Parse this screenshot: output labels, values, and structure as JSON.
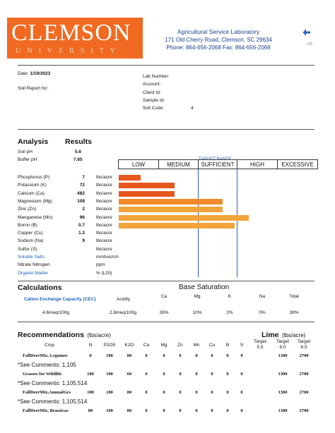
{
  "logo": {
    "line1": "CLEMSON",
    "line2": "UNIVERSITY"
  },
  "lab": {
    "name": "Agricultural Service Laboratory",
    "address": "171 Old Cherry Road, Clemson, SC 29634",
    "phone": "Phone: 864-656-2068 Fax: 864-656-2069"
  },
  "nav": {
    "back_icon": "arrow-left-icon",
    "forward_icon": "arrow-right-icon"
  },
  "report": {
    "date_label": "Date:",
    "date": "1/19/2023",
    "soil_report_for": "Soil Report for:",
    "lab_number": "Lab Number:",
    "account": "Account:",
    "client_id": "Client Id:",
    "sample_id": "Sample Id:",
    "soil_code_label": "Soil Code:",
    "soil_code": "4"
  },
  "analysis": {
    "title": "Analysis",
    "results_title": "Results",
    "soil_ph_label": "Soil pH",
    "soil_ph": "5.6",
    "buffer_ph_label": "Buffer pH",
    "buffer_ph": "7.65",
    "scale": [
      "LOW",
      "MEDIUM",
      "SUFFICIENT",
      "HIGH",
      "EXCESSIVE"
    ],
    "target_range": "TARGET RANGE",
    "nutrients": [
      {
        "name": "Phosphorus (P)",
        "value": "7",
        "unit": "lbs/acre",
        "level": 0.11,
        "color": "#e8561e"
      },
      {
        "name": "Potassium (K)",
        "value": "72",
        "unit": "lbs/acre",
        "level": 0.28,
        "color": "#e8561e"
      },
      {
        "name": "Calcium (Ca)",
        "value": "482",
        "unit": "lbs/acre",
        "level": 0.28,
        "color": "#e8561e"
      },
      {
        "name": "Magnesium (Mg)",
        "value": "108",
        "unit": "lbs/acre",
        "level": 0.52,
        "color": "#f08a2a"
      },
      {
        "name": "Zinc (Zn)",
        "value": "2",
        "unit": "lbs/acre",
        "level": 0.52,
        "color": "#f2a33a"
      },
      {
        "name": "Manganese (Mn)",
        "value": "96",
        "unit": "lbs/acre",
        "level": 0.65,
        "color": "#f2a33a"
      },
      {
        "name": "Boron (B)",
        "value": "0.7",
        "unit": "lbs/acre",
        "level": 0.58,
        "color": "#f2a33a"
      },
      {
        "name": "Copper (Cu)",
        "value": "1.3",
        "unit": "lbs/acre",
        "level": 0,
        "color": "#f2a33a"
      },
      {
        "name": "Sodium (Na)",
        "value": "9",
        "unit": "lbs/acre",
        "level": 0,
        "color": "#f2a33a"
      },
      {
        "name": "Sulfur (S)",
        "value": "",
        "unit": "lbs/acre",
        "level": 0,
        "color": "#f2a33a"
      },
      {
        "name": "Soluble Salts",
        "value": "",
        "unit": "mmhos/cm",
        "level": 0,
        "color": "#f2a33a",
        "blue": true
      },
      {
        "name": "Nitrate Nitrogen",
        "value": "",
        "unit": "ppm",
        "level": 0,
        "color": "#f2a33a"
      },
      {
        "name": "Organic Matter",
        "value": "",
        "unit": "% (LOI)",
        "level": 0,
        "color": "#f2a33a",
        "blue": true
      }
    ]
  },
  "calculations": {
    "title": "Calculations",
    "cec_label": "Cation Exchange Capacity (CEC)",
    "acidity_label": "Acidity",
    "cec_value": "4.6meq/100g",
    "acidity_value": "2.8meq/100g",
    "base_saturation_title": "Base Saturation",
    "bs_headers": [
      "Ca",
      "Mg",
      "K",
      "Na",
      "Total"
    ],
    "bs_values": [
      "26%",
      "10%",
      "2%",
      "0%",
      "38%"
    ]
  },
  "recommendations": {
    "title": "Recommendations",
    "unit": "(lbs/acre)",
    "lime_title": "Lime",
    "lime_unit": "(lbs/acre)",
    "headers": [
      "Crop",
      "N",
      "P2O5",
      "K2O",
      "Ca",
      "Mg",
      "Zn",
      "Mn",
      "Cu",
      "B",
      "S"
    ],
    "lime_headers": [
      "Target 5.5",
      "Target 6.0",
      "Target 6.5"
    ],
    "rows": [
      {
        "crop": "FallDeerMix, Legumes",
        "values": [
          "0",
          "100",
          "80",
          "0",
          "0",
          "0",
          "0",
          "0",
          "0",
          "0"
        ],
        "lime": [
          "",
          "1300",
          "2700"
        ],
        "comment": "*See Comments: 1,105"
      },
      {
        "crop": "Grasses for Wildlife",
        "values": [
          "100",
          "100",
          "60",
          "0",
          "0",
          "0",
          "0",
          "0",
          "0",
          "0"
        ],
        "lime": [
          "",
          "1300",
          "2700"
        ],
        "comment": "*See Comments: 1,105,514"
      },
      {
        "crop": "FallDeerMix,AnnualGrs",
        "values": [
          "100",
          "100",
          "80",
          "0",
          "0",
          "0",
          "0",
          "0",
          "0",
          "0"
        ],
        "lime": [
          "",
          "1300",
          "2700"
        ],
        "comment": "*See Comments: 1,105,514"
      },
      {
        "crop": "FallDeerMix, Brassicas",
        "values": [
          "80",
          "100",
          "80",
          "0",
          "0",
          "0",
          "0",
          "0",
          "0",
          "0"
        ],
        "lime": [
          "",
          "1300",
          "2700"
        ],
        "comment": ""
      }
    ]
  }
}
